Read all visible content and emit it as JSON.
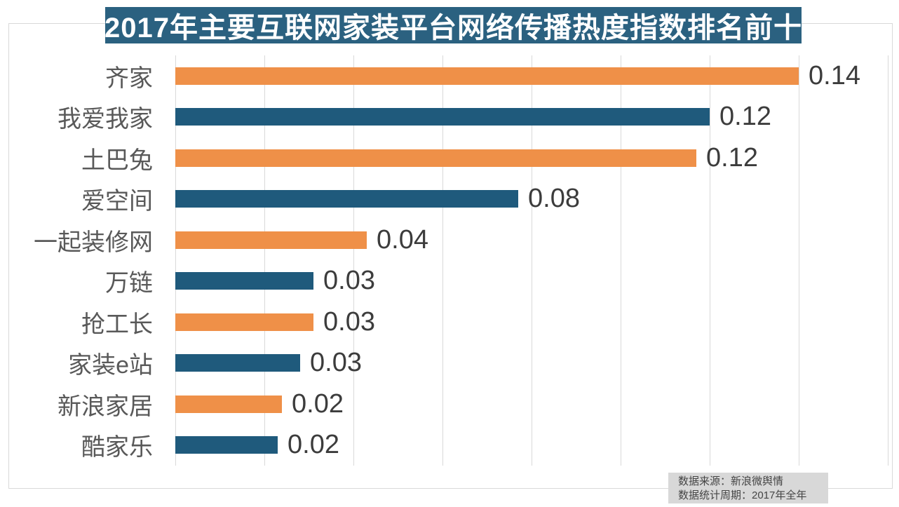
{
  "title": "2017年主要互联网家装平台网络传播热度指数排名前十",
  "footer": {
    "line1": "数据来源：新浪微舆情",
    "line2": "数据统计周期：2017年全年"
  },
  "colors": {
    "orange_bar": "#ef9048",
    "blue_bar": "#1f5a7c",
    "title_background": "#2b6180",
    "title_text": "#ffffff",
    "gridline": "#d9d9d9",
    "category_label": "#595959",
    "value_label": "#3c3c3c",
    "source_note_background": "#d8d8d8"
  },
  "chart_data": {
    "type": "bar",
    "orientation": "horizontal",
    "title": "2017年主要互联网家装平台网络传播热度指数排名前十",
    "categories": [
      "齐家",
      "我爱我家",
      "土巴兔",
      "爱空间",
      "一起装修网",
      "万链",
      "抢工长",
      "家装e站",
      "新浪家居",
      "酷家乐"
    ],
    "values": [
      0.14,
      0.12,
      0.12,
      0.08,
      0.04,
      0.03,
      0.03,
      0.03,
      0.02,
      0.02
    ],
    "value_labels": [
      "0.14",
      "0.12",
      "0.12",
      "0.08",
      "0.04",
      "0.03",
      "0.03",
      "0.03",
      "0.02",
      "0.02"
    ],
    "bar_lengths_est": [
      0.14,
      0.12,
      0.117,
      0.077,
      0.043,
      0.031,
      0.031,
      0.028,
      0.024,
      0.023
    ],
    "palette": [
      "#ef9048",
      "#1f5a7c"
    ],
    "xlabel": "",
    "ylabel": "",
    "xlim": [
      0,
      0.161
    ],
    "gridline_interval": 0.02,
    "grid": "vertical",
    "legend": "none",
    "data_labels": "end-of-bar"
  }
}
